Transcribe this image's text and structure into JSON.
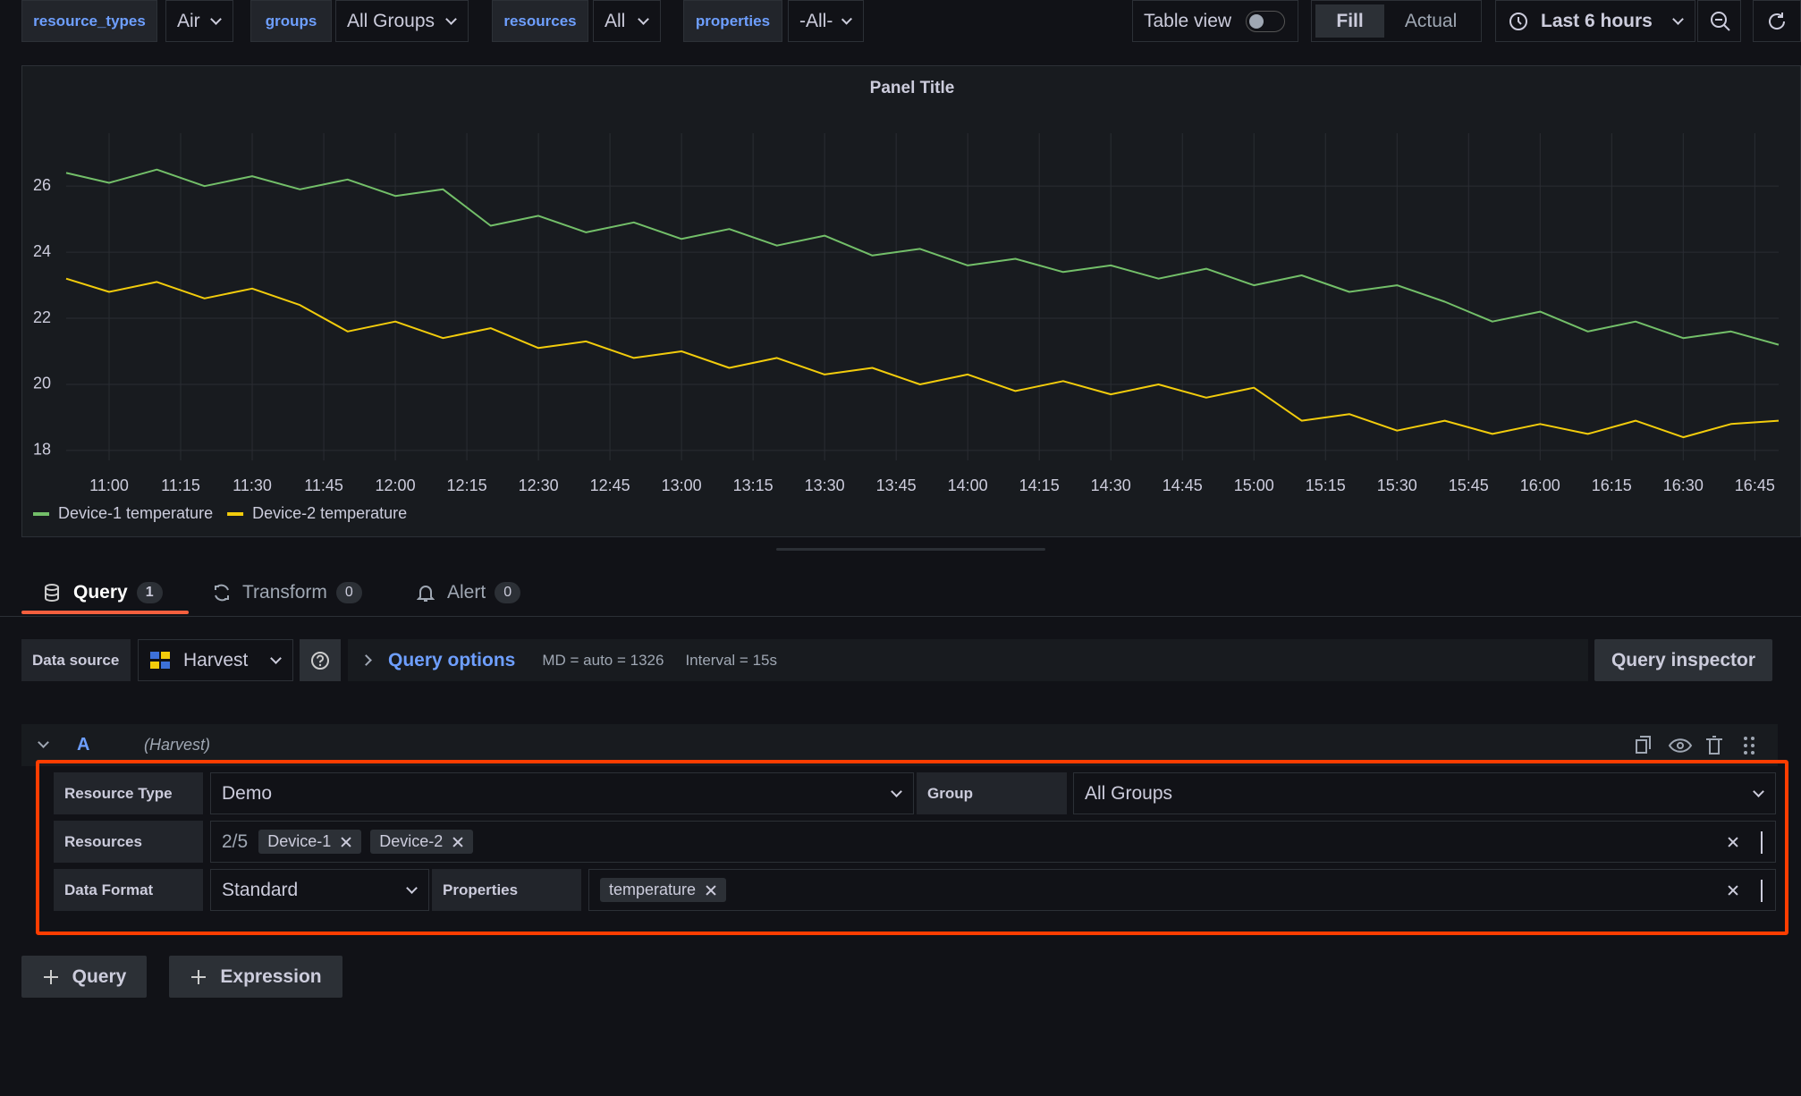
{
  "variables": [
    {
      "label": "resource_types",
      "value": "Air"
    },
    {
      "label": "groups",
      "value": "All Groups"
    },
    {
      "label": "resources",
      "value": "All"
    },
    {
      "label": "properties",
      "value": "-All-"
    }
  ],
  "toolbar": {
    "table_view": "Table view",
    "fill": "Fill",
    "actual": "Actual",
    "time_range": "Last 6 hours"
  },
  "chart_data": {
    "type": "line",
    "title": "Panel Title",
    "x": [
      "10:51",
      "11:00",
      "11:10",
      "11:20",
      "11:30",
      "11:40",
      "11:50",
      "12:00",
      "12:10",
      "12:20",
      "12:30",
      "12:40",
      "12:50",
      "13:00",
      "13:10",
      "13:20",
      "13:30",
      "13:40",
      "13:50",
      "14:00",
      "14:10",
      "14:20",
      "14:30",
      "14:40",
      "14:50",
      "15:00",
      "15:10",
      "15:20",
      "15:30",
      "15:40",
      "15:50",
      "16:00",
      "16:10",
      "16:20",
      "16:30",
      "16:40",
      "16:50"
    ],
    "series": [
      {
        "name": "Device-1 temperature",
        "color": "#73bf69",
        "values": [
          26.4,
          26.1,
          26.5,
          26.0,
          26.3,
          25.9,
          26.2,
          25.7,
          25.9,
          24.8,
          25.1,
          24.6,
          24.9,
          24.4,
          24.7,
          24.2,
          24.5,
          23.9,
          24.1,
          23.6,
          23.8,
          23.4,
          23.6,
          23.2,
          23.5,
          23.0,
          23.3,
          22.8,
          23.0,
          22.5,
          21.9,
          22.2,
          21.6,
          21.9,
          21.4,
          21.6,
          21.2
        ]
      },
      {
        "name": "Device-2 temperature",
        "color": "#f2cc0c",
        "values": [
          23.2,
          22.8,
          23.1,
          22.6,
          22.9,
          22.4,
          21.6,
          21.9,
          21.4,
          21.7,
          21.1,
          21.3,
          20.8,
          21.0,
          20.5,
          20.8,
          20.3,
          20.5,
          20.0,
          20.3,
          19.8,
          20.1,
          19.7,
          20.0,
          19.6,
          19.9,
          18.9,
          19.1,
          18.6,
          18.9,
          18.5,
          18.8,
          18.5,
          18.9,
          18.4,
          18.8,
          18.9
        ]
      }
    ],
    "xlim": [
      "10:51",
      "16:50"
    ],
    "xticks": [
      "11:00",
      "11:15",
      "11:30",
      "11:45",
      "12:00",
      "12:15",
      "12:30",
      "12:45",
      "13:00",
      "13:15",
      "13:30",
      "13:45",
      "14:00",
      "14:15",
      "14:30",
      "14:45",
      "15:00",
      "15:15",
      "15:30",
      "15:45",
      "16:00",
      "16:15",
      "16:30",
      "16:45"
    ],
    "ylim": [
      17.7,
      27.6
    ],
    "yticks": [
      18,
      20,
      22,
      24,
      26
    ],
    "grid": true,
    "legend": "bottom-left"
  },
  "tabs": [
    {
      "label": "Query",
      "count": 1
    },
    {
      "label": "Transform",
      "count": 0
    },
    {
      "label": "Alert",
      "count": 0
    }
  ],
  "data_source": {
    "label": "Data source",
    "value": "Harvest",
    "query_options": "Query options",
    "md": "MD = auto = 1326",
    "interval": "Interval = 15s",
    "query_inspector": "Query inspector"
  },
  "query": {
    "ref": "A",
    "datasource": "(Harvest)",
    "resource_type": {
      "label": "Resource Type",
      "value": "Demo"
    },
    "group": {
      "label": "Group",
      "value": "All Groups"
    },
    "resources": {
      "label": "Resources",
      "count": "2/5",
      "chips": [
        "Device-1",
        "Device-2"
      ]
    },
    "data_format": {
      "label": "Data Format",
      "value": "Standard"
    },
    "properties": {
      "label": "Properties",
      "chips": [
        "temperature"
      ]
    }
  },
  "buttons": {
    "query": "Query",
    "expression": "Expression"
  }
}
